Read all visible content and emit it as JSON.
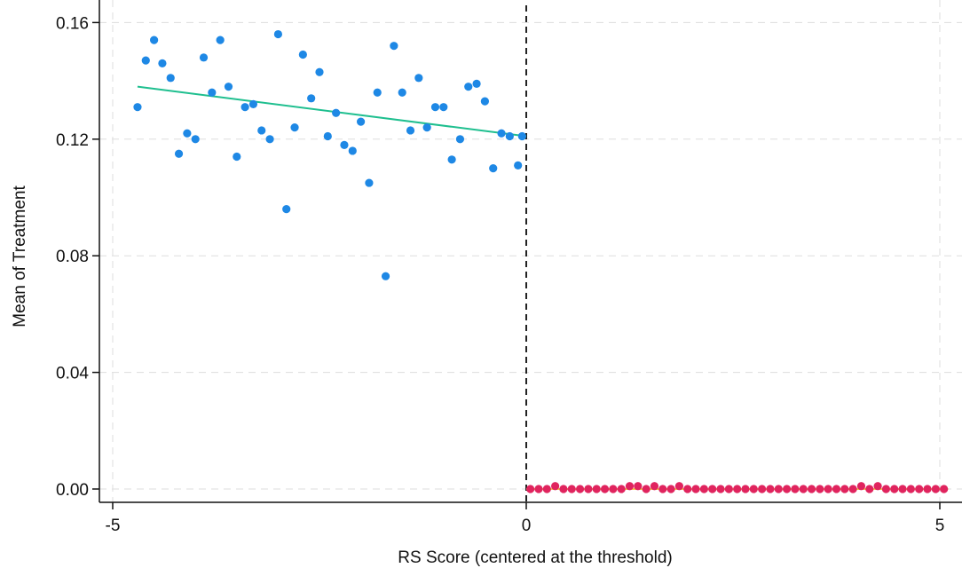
{
  "chart_data": {
    "type": "scatter",
    "xlabel": "RS Score (centered at the threshold)",
    "ylabel": "Mean of Treatment",
    "xlim": [
      -5.1,
      5.2
    ],
    "ylim": [
      -0.005,
      0.165
    ],
    "x_ticks": [
      -5,
      0,
      5
    ],
    "x_tick_labels": [
      "-5",
      "0",
      "5"
    ],
    "y_ticks": [
      0,
      0.04,
      0.08,
      0.12,
      0.16
    ],
    "y_tick_labels": [
      "0.00",
      "0.04",
      "0.08",
      "0.12",
      "0.16"
    ],
    "grid": true,
    "threshold_x": 0,
    "colors": {
      "left_points": "#1e88e5",
      "left_fit": "#1fbf8f",
      "right_points": "#e0245e",
      "right_fit": "#f2c94c",
      "threshold_line": "#222222",
      "grid": "#dddddd"
    },
    "series": [
      {
        "x": [
          -4.7,
          -4.6,
          -4.5,
          -4.4,
          -4.3,
          -4.2,
          -4.1,
          -4.0,
          -3.9,
          -3.8,
          -3.7,
          -3.6,
          -3.5,
          -3.4,
          -3.3,
          -3.2,
          -3.1,
          -3.0,
          -2.9,
          -2.8,
          -2.7,
          -2.6,
          -2.5,
          -2.4,
          -2.3,
          -2.2,
          -2.1,
          -2.0,
          -1.9,
          -1.8,
          -1.7,
          -1.6,
          -1.5,
          -1.4,
          -1.3,
          -1.2,
          -1.1,
          -1.0,
          -0.9,
          -0.8,
          -0.7,
          -0.6,
          -0.5,
          -0.4,
          -0.3,
          -0.2,
          -0.1,
          -0.05
        ],
        "y": [
          0.131,
          0.147,
          0.154,
          0.146,
          0.141,
          0.115,
          0.122,
          0.12,
          0.148,
          0.136,
          0.154,
          0.138,
          0.114,
          0.131,
          0.132,
          0.123,
          0.12,
          0.156,
          0.096,
          0.124,
          0.149,
          0.134,
          0.143,
          0.121,
          0.129,
          0.118,
          0.116,
          0.126,
          0.105,
          0.136,
          0.073,
          0.152,
          0.136,
          0.123,
          0.141,
          0.124,
          0.131,
          0.131,
          0.113,
          0.12,
          0.138,
          0.139,
          0.133,
          0.11,
          0.122,
          0.121,
          0.111,
          0.121
        ]
      },
      {
        "x": [
          0.05,
          0.15,
          0.25,
          0.35,
          0.45,
          0.55,
          0.65,
          0.75,
          0.85,
          0.95,
          1.05,
          1.15,
          1.25,
          1.35,
          1.45,
          1.55,
          1.65,
          1.75,
          1.85,
          1.95,
          2.05,
          2.15,
          2.25,
          2.35,
          2.45,
          2.55,
          2.65,
          2.75,
          2.85,
          2.95,
          3.05,
          3.15,
          3.25,
          3.35,
          3.45,
          3.55,
          3.65,
          3.75,
          3.85,
          3.95,
          4.05,
          4.15,
          4.25,
          4.35,
          4.45,
          4.55,
          4.65,
          4.75,
          4.85,
          4.95,
          5.05
        ],
        "y": [
          0,
          0,
          0,
          0.001,
          0,
          0,
          0,
          0,
          0,
          0,
          0,
          0,
          0.001,
          0.001,
          0,
          0.001,
          0,
          0,
          0.001,
          0,
          0,
          0,
          0,
          0,
          0,
          0,
          0,
          0,
          0,
          0,
          0,
          0,
          0,
          0,
          0,
          0,
          0,
          0,
          0,
          0,
          0.001,
          0,
          0.001,
          0,
          0,
          0,
          0,
          0,
          0,
          0,
          0
        ]
      }
    ],
    "fit_lines": [
      {
        "x": [
          -4.7,
          0
        ],
        "y": [
          0.138,
          0.121
        ]
      },
      {
        "x": [
          0,
          5.1
        ],
        "y": [
          0.0,
          0.0
        ]
      }
    ]
  }
}
